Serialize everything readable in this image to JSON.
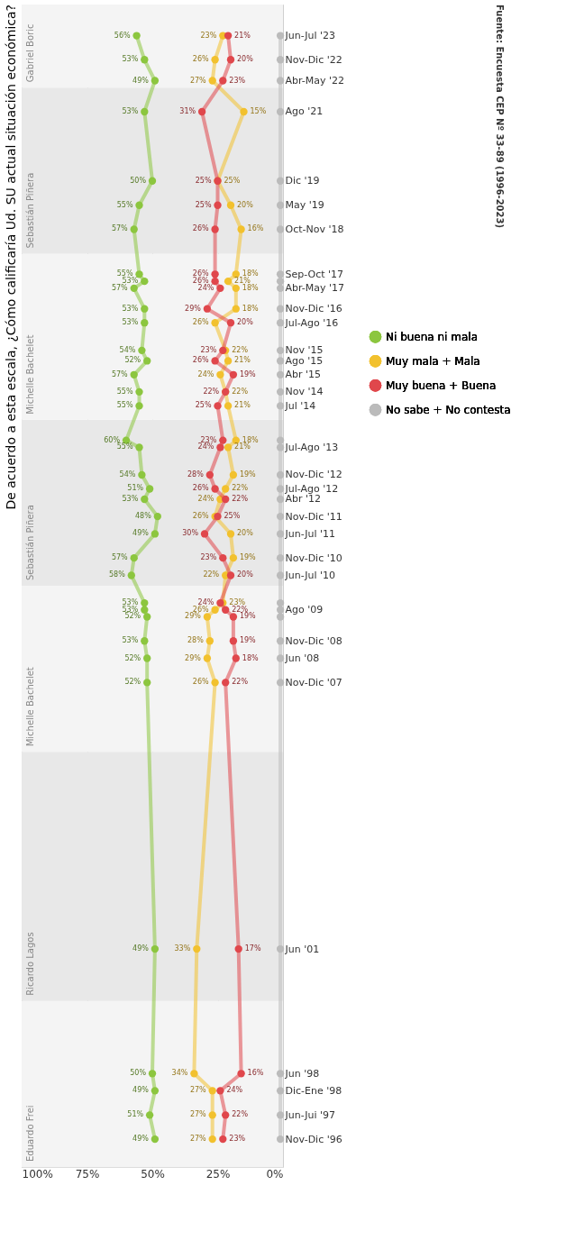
{
  "chart_data": {
    "type": "line",
    "orientation": "horizontal",
    "title": "De acuerdo a esta escala, ¿Cómo calificaría Ud. SU actual situación económica?",
    "annotations": [
      "Fuente: Encuesta CEP Nº 33-89 (1996-2023)"
    ],
    "x": [
      "1996-11",
      "1997-06",
      "1998-01",
      "1998-06",
      "2001-06",
      "2007-11",
      "2008-06",
      "2008-11",
      "2009-06",
      "2009-08",
      "2009-10",
      "2010-06",
      "2010-11",
      "2011-06",
      "2011-11",
      "2012-04",
      "2012-07",
      "2012-11",
      "2013-07",
      "2013-09",
      "2014-07",
      "2014-11",
      "2015-04",
      "2015-08",
      "2015-11",
      "2016-07",
      "2016-11",
      "2017-05",
      "2017-07",
      "2017-09",
      "2018-10",
      "2019-05",
      "2019-12",
      "2021-08",
      "2022-05",
      "2022-11",
      "2023-06"
    ],
    "series": [
      {
        "name": "Ni buena ni mala",
        "color": "#8cc63f",
        "values": [
          49,
          51,
          49,
          50,
          49,
          52,
          52,
          53,
          52,
          53,
          53,
          58,
          57,
          49,
          48,
          53,
          51,
          54,
          55,
          60,
          55,
          55,
          57,
          52,
          54,
          53,
          53,
          57,
          53,
          55,
          57,
          55,
          50,
          53,
          49,
          53,
          56
        ],
        "value_labels": [
          "49%",
          "51%",
          "49%",
          "50%",
          "49%",
          "52%",
          "52%",
          "53%",
          "52%",
          "53%",
          "53%",
          "58%",
          "57%",
          "49%",
          "48%",
          "53%",
          "51%",
          "54%",
          "55%",
          "60%",
          "55%",
          "55%",
          "57%",
          "52%",
          "54%",
          "53%",
          "53%",
          "57%",
          "53%",
          "55%",
          "57%",
          "55%",
          "50%",
          "53%",
          "49%",
          "53%",
          "56%"
        ]
      },
      {
        "name": "Muy mala + Mala",
        "color": "#f2c12e",
        "values": [
          27,
          27,
          27,
          34,
          33,
          26,
          29,
          28,
          29,
          26,
          23,
          22,
          19,
          20,
          26,
          24,
          22,
          19,
          21,
          18,
          21,
          22,
          24,
          21,
          22,
          26,
          18,
          18,
          21,
          18,
          16,
          20,
          25,
          15,
          27,
          26,
          23
        ],
        "value_labels": [
          "27%",
          "27%",
          "27%",
          "34%",
          "33%",
          "26%",
          "29%",
          "28%",
          "29%",
          "26%",
          "23%",
          "22%",
          "19%",
          "20%",
          "26%",
          "24%",
          "22%",
          "19%",
          "21%",
          "18%",
          "21%",
          "22%",
          "24%",
          "21%",
          "22%",
          "26%",
          "18%",
          "18%",
          "21%",
          "18%",
          "16%",
          "20%",
          "25%",
          "15%",
          "27%",
          "26%",
          "23%"
        ]
      },
      {
        "name": "Muy buena + Buena",
        "color": "#e0474c",
        "values": [
          23,
          22,
          24,
          16,
          17,
          22,
          18,
          19,
          19,
          22,
          24,
          20,
          23,
          30,
          25,
          22,
          26,
          28,
          24,
          23,
          25,
          22,
          19,
          26,
          23,
          20,
          29,
          24,
          26,
          26,
          26,
          25,
          25,
          31,
          23,
          20,
          21
        ],
        "value_labels": [
          "23%",
          "22%",
          "24%",
          "16%",
          "17%",
          "22%",
          "18%",
          "19%",
          "19%",
          "22%",
          "24%",
          "20%",
          "23%",
          "30%",
          "25%",
          "22%",
          "26%",
          "28%",
          "24%",
          "23%",
          "25%",
          "22%",
          "19%",
          "26%",
          "23%",
          "20%",
          "29%",
          "24%",
          "26%",
          "26%",
          "26%",
          "25%",
          "25%",
          "31%",
          "23%",
          "20%",
          "21%"
        ]
      },
      {
        "name": "No sabe + No contesta",
        "color": "#bbbbbb",
        "values": [
          1,
          1,
          1,
          1,
          1,
          1,
          1,
          1,
          1,
          1,
          1,
          1,
          1,
          1,
          1,
          1,
          1,
          1,
          1,
          1,
          1,
          1,
          1,
          1,
          1,
          1,
          1,
          1,
          1,
          1,
          1,
          1,
          1,
          1,
          1,
          1,
          1
        ]
      }
    ],
    "xlim": [
      100,
      0
    ],
    "xticks": [
      {
        "value": 100,
        "label": "100%"
      },
      {
        "value": 75,
        "label": "75%"
      },
      {
        "value": 50,
        "label": "50%"
      },
      {
        "value": 25,
        "label": "25%"
      },
      {
        "value": 0,
        "label": "0%"
      }
    ],
    "ylim": [
      "1996-03",
      "2024-03"
    ],
    "yticks": [
      {
        "value": "1996-11",
        "label": "Nov-Dic '96"
      },
      {
        "value": "1997-06",
        "label": "Jun-Jui '97"
      },
      {
        "value": "1998-01",
        "label": "Dic-Ene '98"
      },
      {
        "value": "1998-06",
        "label": "Jun '98"
      },
      {
        "value": "2001-06",
        "label": "Jun '01"
      },
      {
        "value": "2007-11",
        "label": "Nov-Dic '07"
      },
      {
        "value": "2008-06",
        "label": "Jun '08"
      },
      {
        "value": "2008-11",
        "label": "Nov-Dic '08"
      },
      {
        "value": "2009-08",
        "label": "Ago '09"
      },
      {
        "value": "2010-06",
        "label": "Jun-Jul '10"
      },
      {
        "value": "2010-11",
        "label": "Nov-Dic '10"
      },
      {
        "value": "2011-06",
        "label": "Jun-Jul '11"
      },
      {
        "value": "2011-11",
        "label": "Nov-Dic '11"
      },
      {
        "value": "2012-04",
        "label": "Abr '12"
      },
      {
        "value": "2012-07",
        "label": "Jul-Ago '12"
      },
      {
        "value": "2012-11",
        "label": "Nov-Dic '12"
      },
      {
        "value": "2013-07",
        "label": "Jul-Ago '13"
      },
      {
        "value": "2014-07",
        "label": "Jul '14"
      },
      {
        "value": "2014-11",
        "label": "Nov '14"
      },
      {
        "value": "2015-04",
        "label": "Abr '15"
      },
      {
        "value": "2015-08",
        "label": "Ago '15"
      },
      {
        "value": "2015-11",
        "label": "Nov '15"
      },
      {
        "value": "2016-07",
        "label": "Jul-Ago '16"
      },
      {
        "value": "2016-11",
        "label": "Nov-Dic '16"
      },
      {
        "value": "2017-05",
        "label": "Abr-May '17"
      },
      {
        "value": "2017-09",
        "label": "Sep-Oct '17"
      },
      {
        "value": "2018-10",
        "label": "Oct-Nov '18"
      },
      {
        "value": "2019-05",
        "label": "May '19"
      },
      {
        "value": "2019-12",
        "label": "Dic '19"
      },
      {
        "value": "2021-08",
        "label": "Ago '21"
      },
      {
        "value": "2022-05",
        "label": "Abr-May '22"
      },
      {
        "value": "2022-11",
        "label": "Nov-Dic '22"
      },
      {
        "value": "2023-06",
        "label": "Jun-Jul '23"
      }
    ],
    "bands": [
      {
        "axis": "y",
        "from": "1996-03",
        "to": "2000-03",
        "label": "Eduardo Frei",
        "color": "#f4f4f4"
      },
      {
        "axis": "y",
        "from": "2000-03",
        "to": "2006-03",
        "label": "Ricardo Lagos",
        "color": "#e8e8e8"
      },
      {
        "axis": "y",
        "from": "2006-03",
        "to": "2010-03",
        "label": "Michelle Bachelet",
        "color": "#f4f4f4"
      },
      {
        "axis": "y",
        "from": "2010-03",
        "to": "2014-03",
        "label": "Sebastián Piñera",
        "color": "#e8e8e8"
      },
      {
        "axis": "y",
        "from": "2014-03",
        "to": "2018-03",
        "label": "Michelle Bachelet",
        "color": "#f4f4f4"
      },
      {
        "axis": "y",
        "from": "2018-03",
        "to": "2022-03",
        "label": "Sebastián Piñera",
        "color": "#e8e8e8"
      },
      {
        "axis": "y",
        "from": "2022-03",
        "to": "2024-03",
        "label": "Gabriel Boric",
        "color": "#f4f4f4"
      }
    ],
    "grid": "x",
    "legend": "right",
    "marker": "circle",
    "line_style": "solid"
  }
}
